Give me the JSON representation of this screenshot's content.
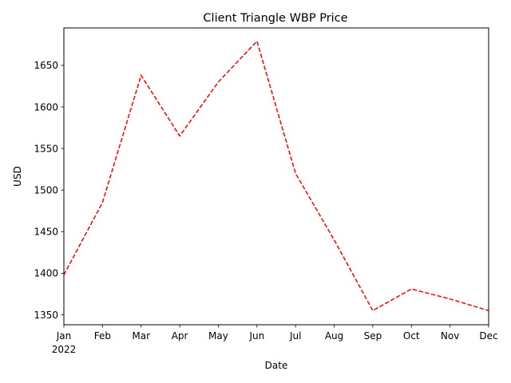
{
  "chart_data": {
    "type": "line",
    "title": "Client Triangle WBP Price",
    "xlabel": "Date",
    "ylabel": "USD",
    "x": [
      "2022-01",
      "2022-02",
      "2022-03",
      "2022-04",
      "2022-05",
      "2022-06",
      "2022-07",
      "2022-08",
      "2022-09",
      "2022-10",
      "2022-11",
      "2022-12"
    ],
    "x_tick_labels": [
      "Jan",
      "Feb",
      "Mar",
      "Apr",
      "May",
      "Jun",
      "Jul",
      "Aug",
      "Sep",
      "Oct",
      "Nov",
      "Dec"
    ],
    "x_year_label": "2022",
    "series": [
      {
        "values": [
          1398,
          1485,
          1638,
          1565,
          1630,
          1679,
          1520,
          1440,
          1355,
          1381,
          1369,
          1355
        ],
        "color": "#ff0000",
        "line_style": "dashed"
      }
    ],
    "y_ticks": [
      1350,
      1400,
      1450,
      1500,
      1550,
      1600,
      1650
    ],
    "ylim": [
      1338,
      1695
    ],
    "grid": false,
    "legend": "none"
  }
}
